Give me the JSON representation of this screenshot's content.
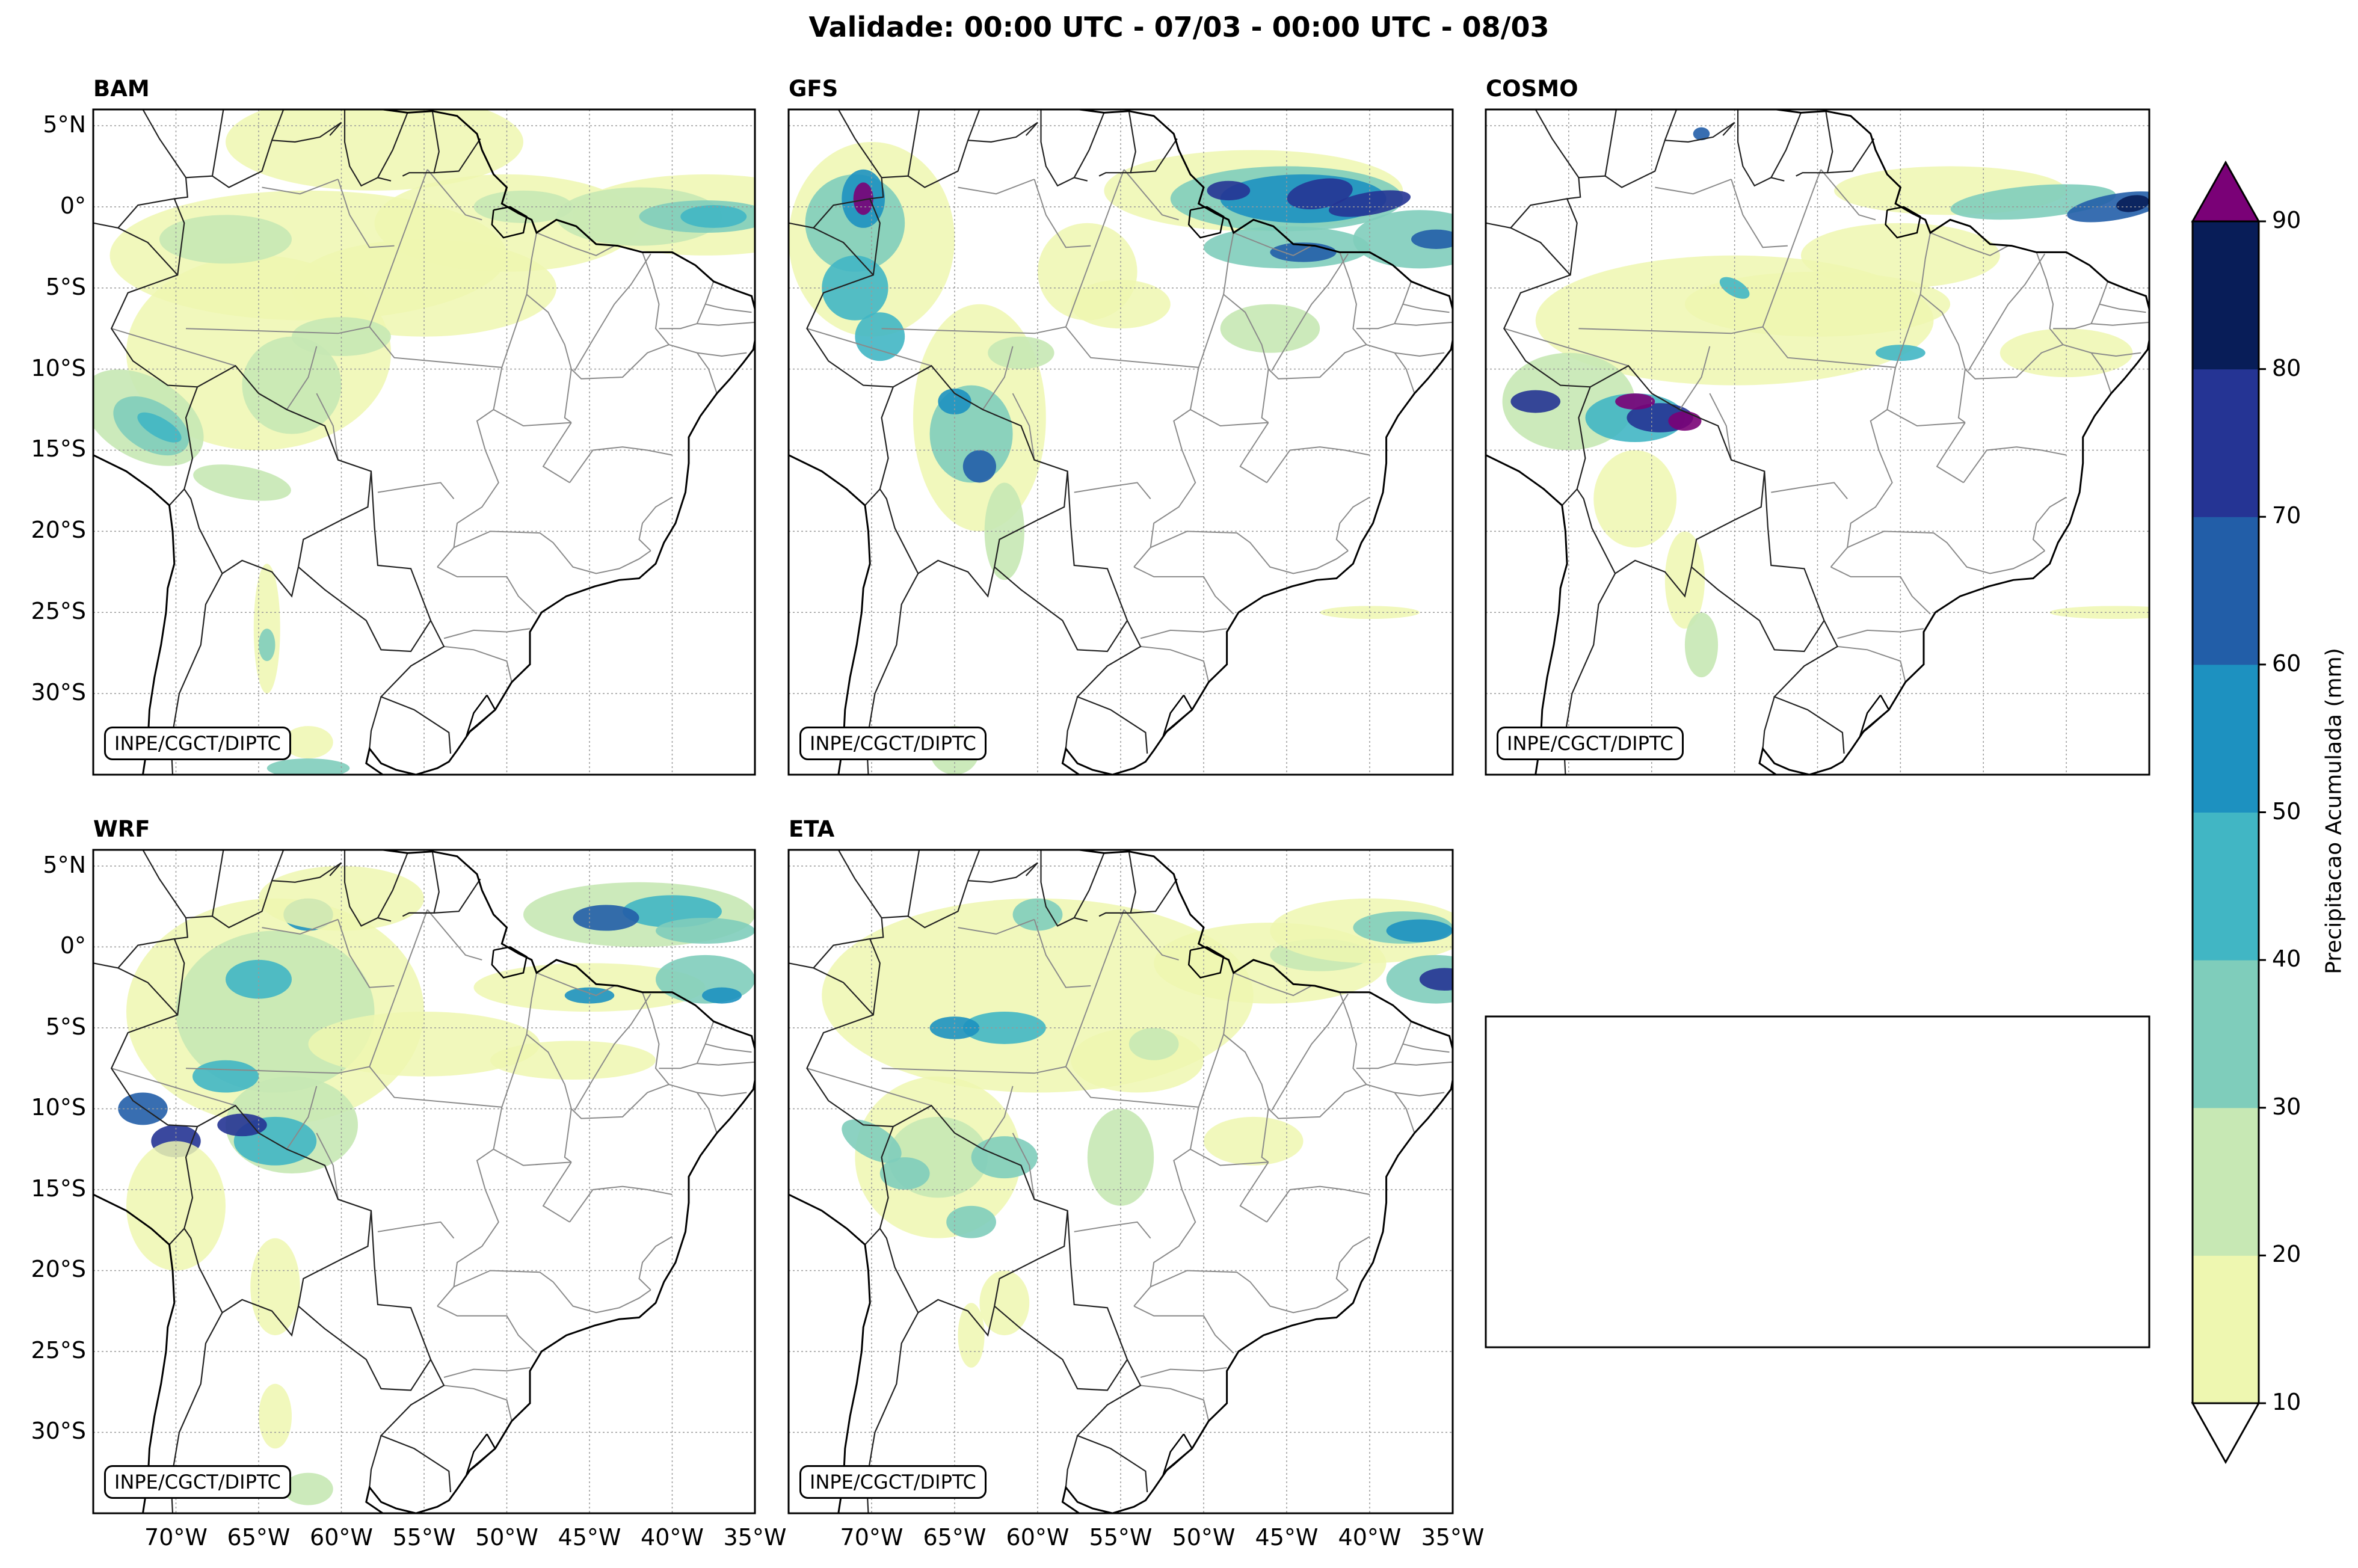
{
  "figure": {
    "title": "Validade: 00:00 UTC - 07/03 - 00:00 UTC - 08/03",
    "credit": "INPE/CGCT/DIPTC",
    "lat_ticks": [
      "5°N",
      "0°",
      "5°S",
      "10°S",
      "15°S",
      "20°S",
      "25°S",
      "30°S"
    ],
    "lon_ticks": [
      "70°W",
      "65°W",
      "60°W",
      "55°W",
      "50°W",
      "45°W",
      "40°W",
      "35°W"
    ]
  },
  "panels": [
    {
      "title": "BAM"
    },
    {
      "title": "GFS"
    },
    {
      "title": "COSMO"
    },
    {
      "title": "WRF"
    },
    {
      "title": "ETA"
    }
  ],
  "colorbar": {
    "label": "Precipitacao Acumulada (mm)",
    "ticks": [
      "10",
      "20",
      "30",
      "40",
      "50",
      "60",
      "70",
      "80",
      "90"
    ],
    "levels": [
      10,
      20,
      30,
      40,
      50,
      60,
      70,
      80,
      90
    ],
    "colors": [
      "#eef7b0",
      "#c7e8b4",
      "#7fcdbb",
      "#41b6c4",
      "#1d91c0",
      "#225ea8",
      "#253494",
      "#081d58"
    ],
    "over_color": "#7a0177",
    "under_color": "#ffffff"
  },
  "map": {
    "lon_range": [
      -75,
      -35
    ],
    "lat_range": [
      -35,
      6
    ],
    "coast_color": "#000000",
    "border_color": "#888888"
  }
}
